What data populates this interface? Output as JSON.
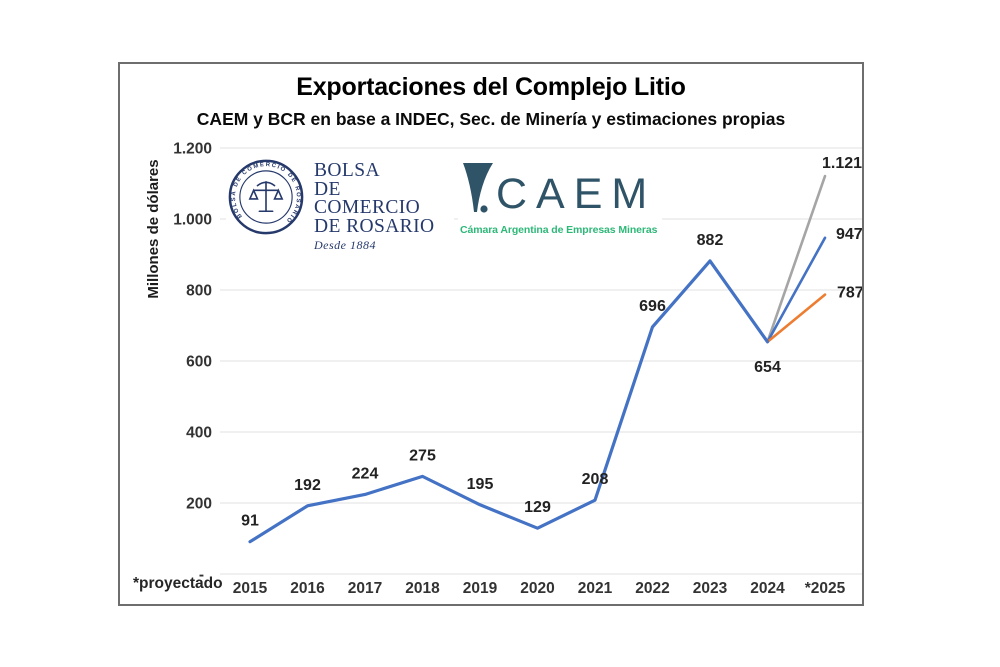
{
  "chart": {
    "title": "Exportaciones del Complejo Litio",
    "subtitle": "CAEM y BCR en base a INDEC, Sec. de Minería y estimaciones propias"
  },
  "logos": {
    "bcr": {
      "line1": "BOLSA",
      "line2": "DE COMERCIO",
      "line3": "DE ROSARIO",
      "tagline": "Desde 1884",
      "seal_text": "BOLSA DE COMERCIO DE ROSARIO",
      "color": "#26396B"
    },
    "caem": {
      "name": "CAEM",
      "tagline": "Cámara Argentina de Empresas Mineras",
      "color": "#2F5468",
      "tagline_color": "#2EB878"
    }
  },
  "chart_data": {
    "type": "line",
    "title": "Exportaciones del Complejo Litio",
    "subtitle": "CAEM y BCR en base a INDEC, Sec. de Minería y estimaciones propias",
    "ylabel": "Millones de dólares",
    "footnote": "*proyectado",
    "categories": [
      "2015",
      "2016",
      "2017",
      "2018",
      "2019",
      "2020",
      "2021",
      "2022",
      "2023",
      "2024",
      "*2025"
    ],
    "actual_values": [
      91,
      192,
      224,
      275,
      195,
      129,
      208,
      696,
      882,
      654
    ],
    "projections_2025": [
      {
        "value": 1121,
        "label": "1.121",
        "color": "#A5A5A5"
      },
      {
        "value": 947,
        "label": "947",
        "color": "#4472C4"
      },
      {
        "value": 787,
        "label": "787",
        "color": "#ED7D31"
      }
    ],
    "line_color": "#4472C4",
    "grid": true,
    "grid_color": "#E8E8E8",
    "legend": "none",
    "y_axis": {
      "min": 0,
      "max": 1200,
      "tick_step": 200,
      "tick_labels": [
        "-",
        "200",
        "400",
        "600",
        "800",
        "1.000",
        "1.200"
      ]
    }
  }
}
